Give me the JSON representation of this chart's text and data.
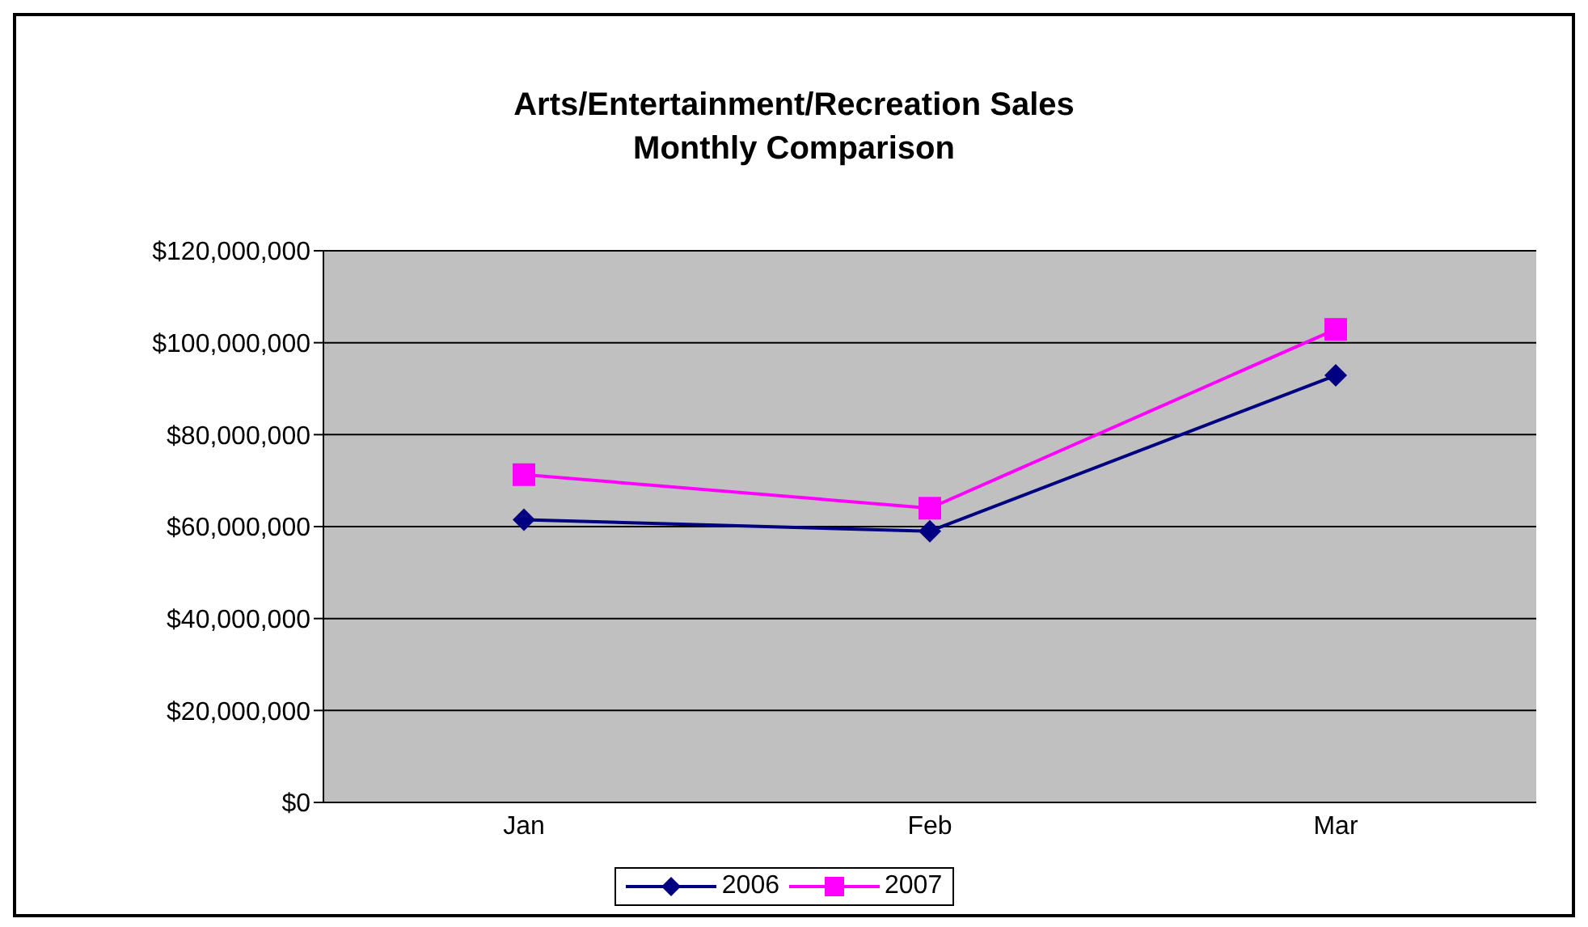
{
  "chart_data": {
    "type": "line",
    "title": "Arts/Entertainment/Recreation Sales\nMonthly Comparison",
    "categories": [
      "Jan",
      "Feb",
      "Mar"
    ],
    "series": [
      {
        "name": "2006",
        "color": "#000080",
        "marker": "diamond",
        "values": [
          61500000,
          59000000,
          92900000
        ]
      },
      {
        "name": "2007",
        "color": "#ff00ff",
        "marker": "square",
        "values": [
          71300000,
          64000000,
          102900000
        ]
      }
    ],
    "ylim": [
      0,
      120000000
    ],
    "yticks": [
      {
        "value": 0,
        "label": "$0"
      },
      {
        "value": 20000000,
        "label": "$20,000,000"
      },
      {
        "value": 40000000,
        "label": "$40,000,000"
      },
      {
        "value": 60000000,
        "label": "$60,000,000"
      },
      {
        "value": 80000000,
        "label": "$80,000,000"
      },
      {
        "value": 100000000,
        "label": "$100,000,000"
      },
      {
        "value": 120000000,
        "label": "$120,000,000"
      }
    ],
    "grid": "y",
    "legend": "bottom"
  }
}
